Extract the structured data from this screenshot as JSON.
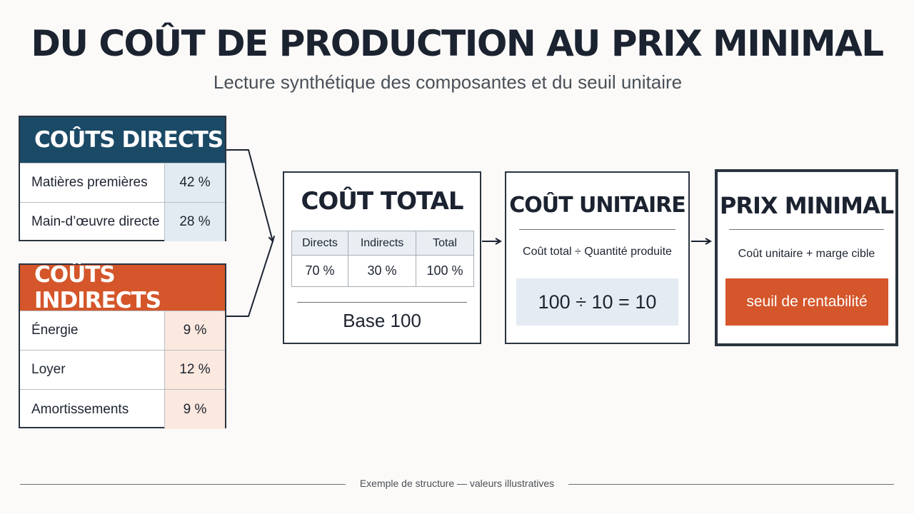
{
  "title": "DU COÛT DE PRODUCTION AU PRIX MINIMAL",
  "subtitle": "Lecture synthétique des composantes et du seuil unitaire",
  "direct_costs": {
    "heading": "COÛTS DIRECTS",
    "header_color": "#1b4a66",
    "value_bg": "#e3ebf2",
    "rows": [
      {
        "label": "Matières premières",
        "value": "42 %"
      },
      {
        "label": "Main-d’œuvre directe",
        "value": "28 %"
      }
    ]
  },
  "indirect_costs": {
    "heading": "COÛTS INDIRECTS",
    "header_color": "#d4562a",
    "value_bg": "#fbe8df",
    "rows": [
      {
        "label": "Énergie",
        "value": "9 %"
      },
      {
        "label": "Loyer",
        "value": "12 %"
      },
      {
        "label": "Amortissements",
        "value": "9 %"
      }
    ]
  },
  "total_cost": {
    "heading": "COÛT TOTAL",
    "columns": [
      "Directs",
      "Indirects",
      "Total"
    ],
    "values": [
      "70 %",
      "30 %",
      "100 %"
    ],
    "base": "Base 100"
  },
  "unit_cost": {
    "heading": "COÛT UNITAIRE",
    "formula": "Coût total ÷ Quantité produite",
    "computation": "100 ÷ 10 = 10"
  },
  "min_price": {
    "heading": "PRIX MINIMAL",
    "formula": "Coût unitaire + marge cible",
    "badge": "seuil de rentabilité",
    "badge_color": "#d4562a"
  },
  "footer": "Exemple de structure — valeurs illustratives"
}
